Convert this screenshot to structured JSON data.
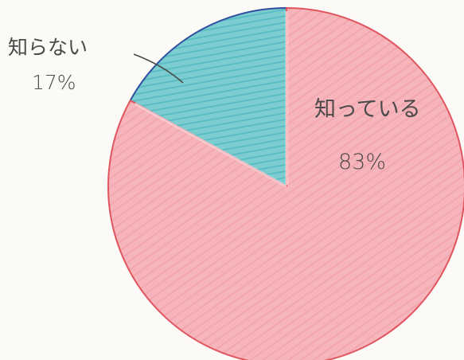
{
  "chart_data": {
    "type": "pie",
    "title": "",
    "slices": [
      {
        "label": "知らない",
        "value": 17,
        "value_label": "17%",
        "color": "#7ccdd0"
      },
      {
        "label": "知っている",
        "value": 83,
        "value_label": "83%",
        "color": "#f6b4bb"
      }
    ],
    "legend": "none",
    "start_angle_deg": 0,
    "direction": "counterclockwise"
  }
}
